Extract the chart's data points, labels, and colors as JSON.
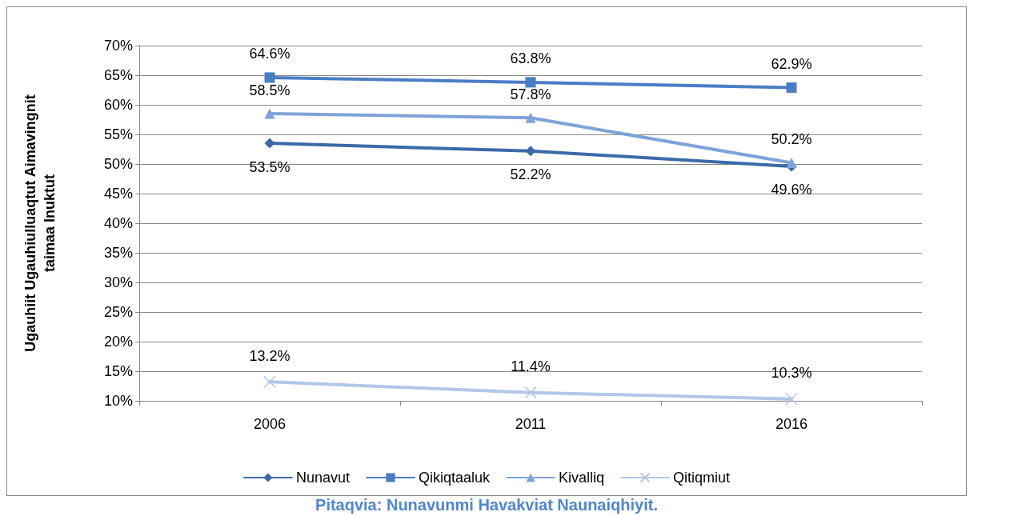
{
  "chart_data": {
    "type": "line",
    "ylabel": "Ugauhiit Ugauhiulluaqtut Aimavingnit\ntaimaa Inuktut",
    "categories": [
      "2006",
      "2011",
      "2016"
    ],
    "series": [
      {
        "name": "Nunavut",
        "color": "#3b6aa9",
        "marker": "diamond",
        "values": [
          53.5,
          52.2,
          49.6
        ],
        "value_labels": [
          "53.5%",
          "52.2%",
          "49.6%"
        ]
      },
      {
        "name": "Qikiqtaaluk",
        "color": "#4a7dc5",
        "marker": "square",
        "values": [
          64.6,
          63.8,
          62.9
        ],
        "value_labels": [
          "64.6%",
          "63.8%",
          "62.9%"
        ]
      },
      {
        "name": "Kivalliq",
        "color": "#7ea3da",
        "marker": "triangle",
        "values": [
          58.5,
          57.8,
          50.2
        ],
        "value_labels": [
          "58.5%",
          "57.8%",
          "50.2%"
        ]
      },
      {
        "name": "Qitiqmiut",
        "color": "#b2c6e8",
        "marker": "cross",
        "values": [
          13.2,
          11.4,
          10.3
        ],
        "value_labels": [
          "13.2%",
          "11.4%",
          "10.3%"
        ]
      }
    ],
    "ylim": [
      10,
      70
    ],
    "yticks": [
      {
        "value": 10,
        "label": "10%"
      },
      {
        "value": 15,
        "label": "15%"
      },
      {
        "value": 20,
        "label": "20%"
      },
      {
        "value": 25,
        "label": "25%"
      },
      {
        "value": 30,
        "label": "30%"
      },
      {
        "value": 35,
        "label": "35%"
      },
      {
        "value": 40,
        "label": "40%"
      },
      {
        "value": 45,
        "label": "45%"
      },
      {
        "value": 50,
        "label": "50%"
      },
      {
        "value": 55,
        "label": "55%"
      },
      {
        "value": 60,
        "label": "60%"
      },
      {
        "value": 65,
        "label": "65%"
      },
      {
        "value": 70,
        "label": "70%"
      }
    ],
    "grid": "y",
    "legend": "bottom",
    "line_style": "solid",
    "annotations": [
      "Pitaqvia: Nunavunmi Havakviat Naunaiqhiyit."
    ]
  }
}
